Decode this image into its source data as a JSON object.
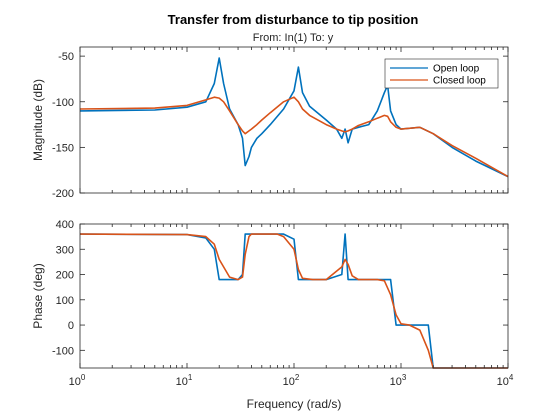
{
  "header": {
    "title": "Transfer from disturbance to tip position",
    "subtitle": "From: In(1)  To: y"
  },
  "colors": {
    "open_loop": "#0072BD",
    "closed_loop": "#D95319",
    "axes": "#262626"
  },
  "chart_data": [
    {
      "type": "line",
      "panel": "magnitude",
      "xscale": "log",
      "xlim": [
        1,
        10000
      ],
      "ylim": [
        -200,
        -40
      ],
      "ylabel": "Magnitude (dB)",
      "yticks": [
        -50,
        -100,
        -150,
        -200
      ],
      "ytick_labels": [
        "-50",
        "-100",
        "-150",
        "-200"
      ],
      "legend": {
        "position": "top-right",
        "entries": [
          "Open loop",
          "Closed loop"
        ]
      },
      "series": [
        {
          "name": "Open loop",
          "x": [
            1,
            5,
            10,
            15,
            18,
            20,
            22,
            25,
            30,
            33,
            35,
            38,
            40,
            45,
            50,
            60,
            80,
            100,
            110,
            120,
            140,
            200,
            250,
            280,
            300,
            320,
            350,
            400,
            500,
            600,
            700,
            750,
            800,
            900,
            1000,
            1500,
            2000,
            3000,
            5000,
            10000
          ],
          "y": [
            -110,
            -109,
            -106,
            -100,
            -80,
            -52,
            -80,
            -108,
            -125,
            -140,
            -170,
            -160,
            -150,
            -140,
            -135,
            -125,
            -108,
            -88,
            -62,
            -90,
            -105,
            -120,
            -130,
            -140,
            -130,
            -145,
            -130,
            -128,
            -125,
            -110,
            -90,
            -82,
            -110,
            -125,
            -130,
            -128,
            -135,
            -150,
            -165,
            -182
          ]
        },
        {
          "name": "Closed loop",
          "x": [
            1,
            5,
            10,
            15,
            18,
            20,
            22,
            25,
            30,
            33,
            35,
            38,
            40,
            45,
            50,
            60,
            80,
            100,
            110,
            120,
            140,
            200,
            250,
            280,
            300,
            320,
            350,
            400,
            500,
            600,
            700,
            750,
            800,
            900,
            1000,
            1500,
            2000,
            3000,
            5000,
            10000
          ],
          "y": [
            -108,
            -107,
            -104,
            -98,
            -95,
            -96,
            -100,
            -110,
            -125,
            -132,
            -135,
            -132,
            -130,
            -125,
            -120,
            -112,
            -100,
            -95,
            -100,
            -108,
            -115,
            -125,
            -130,
            -132,
            -133,
            -132,
            -130,
            -126,
            -122,
            -118,
            -115,
            -116,
            -122,
            -128,
            -130,
            -128,
            -135,
            -148,
            -162,
            -182
          ]
        }
      ]
    },
    {
      "type": "line",
      "panel": "phase",
      "xscale": "log",
      "xlim": [
        1,
        10000
      ],
      "ylim": [
        -170,
        400
      ],
      "xlabel": "Frequency (rad/s)",
      "ylabel": "Phase (deg)",
      "xtick_labels": [
        {
          "base": "10",
          "exp": "0"
        },
        {
          "base": "10",
          "exp": "1"
        },
        {
          "base": "10",
          "exp": "2"
        },
        {
          "base": "10",
          "exp": "3"
        },
        {
          "base": "10",
          "exp": "4"
        }
      ],
      "yticks": [
        400,
        300,
        200,
        100,
        0,
        -100
      ],
      "ytick_labels": [
        "400",
        "300",
        "200",
        "100",
        "0",
        "-100"
      ],
      "series": [
        {
          "name": "Open loop",
          "x": [
            1,
            10,
            15,
            18,
            20,
            25,
            30,
            33,
            35,
            38,
            40,
            45,
            50,
            60,
            70,
            80,
            100,
            110,
            120,
            150,
            200,
            280,
            300,
            320,
            350,
            400,
            500,
            600,
            700,
            800,
            900,
            1000,
            1200,
            1500,
            1800,
            2000,
            3000,
            10000
          ],
          "y": [
            360,
            358,
            345,
            300,
            180,
            180,
            180,
            200,
            360,
            360,
            360,
            360,
            360,
            360,
            360,
            360,
            340,
            180,
            180,
            180,
            180,
            200,
            360,
            180,
            180,
            180,
            180,
            180,
            180,
            180,
            0,
            0,
            0,
            0,
            0,
            -180,
            -180,
            -180
          ]
        },
        {
          "name": "Closed loop",
          "x": [
            1,
            10,
            15,
            18,
            20,
            25,
            30,
            33,
            35,
            38,
            40,
            45,
            50,
            60,
            70,
            80,
            100,
            110,
            120,
            150,
            200,
            280,
            300,
            320,
            350,
            400,
            500,
            600,
            700,
            800,
            900,
            1000,
            1200,
            1500,
            1800,
            2000,
            3000,
            10000
          ],
          "y": [
            360,
            358,
            350,
            320,
            260,
            190,
            180,
            190,
            280,
            350,
            360,
            360,
            360,
            360,
            360,
            350,
            300,
            220,
            185,
            180,
            180,
            230,
            260,
            240,
            195,
            180,
            180,
            180,
            175,
            120,
            40,
            5,
            0,
            -20,
            -100,
            -170,
            -180,
            -180
          ]
        }
      ]
    }
  ]
}
